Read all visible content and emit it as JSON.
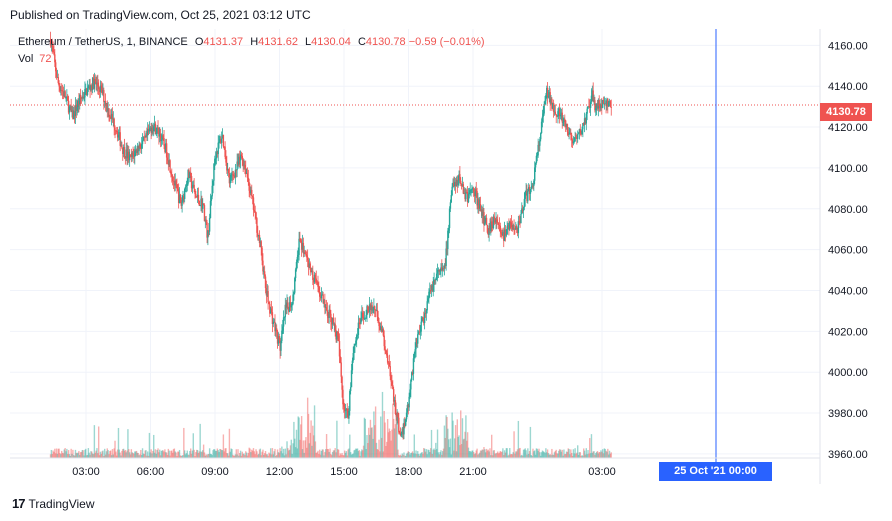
{
  "header": {
    "published": "Published on TradingView.com, Oct 25, 2021 03:12 UTC"
  },
  "legend": {
    "symbol": "Ethereum / TetherUS, 1, BINANCE",
    "o_label": "O",
    "o": "4131.37",
    "h_label": "H",
    "h": "4131.62",
    "l_label": "L",
    "l": "4130.04",
    "c_label": "C",
    "c": "4130.78",
    "change": "−0.59 (−0.01%)",
    "vol_label": "Vol",
    "vol": "72"
  },
  "footer": {
    "brand": "TradingView"
  },
  "chart_data": {
    "type": "candlestick",
    "x_ticks": [
      "03:00",
      "06:00",
      "09:00",
      "12:00",
      "15:00",
      "18:00",
      "21:00",
      "03:00"
    ],
    "y_ticks": [
      "4160.00",
      "4140.00",
      "4120.00",
      "4100.00",
      "4080.00",
      "4060.00",
      "4040.00",
      "4020.00",
      "4000.00",
      "3980.00",
      "3960.00"
    ],
    "ylim": [
      3958,
      4168
    ],
    "last_price": "4130.78",
    "crosshair_time": "25 Oct '21   00:00",
    "colors": {
      "up": "#26a69a",
      "down": "#ef5350",
      "crosshair": "#2962ff",
      "grid": "#f0f3fa"
    },
    "price_path": [
      {
        "t": 0.0,
        "p": 4163
      },
      {
        "t": 0.15,
        "p": 4142
      },
      {
        "t": 0.3,
        "p": 4135
      },
      {
        "t": 0.45,
        "p": 4125
      },
      {
        "t": 0.6,
        "p": 4133
      },
      {
        "t": 0.75,
        "p": 4138
      },
      {
        "t": 0.9,
        "p": 4142
      },
      {
        "t": 1.05,
        "p": 4138
      },
      {
        "t": 1.2,
        "p": 4128
      },
      {
        "t": 1.35,
        "p": 4120
      },
      {
        "t": 1.5,
        "p": 4109
      },
      {
        "t": 1.65,
        "p": 4104
      },
      {
        "t": 1.8,
        "p": 4110
      },
      {
        "t": 1.95,
        "p": 4113
      },
      {
        "t": 2.1,
        "p": 4121
      },
      {
        "t": 2.25,
        "p": 4117
      },
      {
        "t": 2.4,
        "p": 4108
      },
      {
        "t": 2.55,
        "p": 4093
      },
      {
        "t": 2.7,
        "p": 4082
      },
      {
        "t": 2.85,
        "p": 4097
      },
      {
        "t": 3.0,
        "p": 4086
      },
      {
        "t": 3.15,
        "p": 4082
      },
      {
        "t": 3.25,
        "p": 4066
      },
      {
        "t": 3.4,
        "p": 4106
      },
      {
        "t": 3.55,
        "p": 4116
      },
      {
        "t": 3.7,
        "p": 4093
      },
      {
        "t": 3.85,
        "p": 4100
      },
      {
        "t": 3.95,
        "p": 4106
      },
      {
        "t": 4.05,
        "p": 4098
      },
      {
        "t": 4.2,
        "p": 4080
      },
      {
        "t": 4.35,
        "p": 4060
      },
      {
        "t": 4.45,
        "p": 4040
      },
      {
        "t": 4.6,
        "p": 4025
      },
      {
        "t": 4.75,
        "p": 4012
      },
      {
        "t": 4.85,
        "p": 4030
      },
      {
        "t": 5.0,
        "p": 4035
      },
      {
        "t": 5.15,
        "p": 4065
      },
      {
        "t": 5.25,
        "p": 4058
      },
      {
        "t": 5.4,
        "p": 4048
      },
      {
        "t": 5.55,
        "p": 4040
      },
      {
        "t": 5.7,
        "p": 4030
      },
      {
        "t": 5.8,
        "p": 4027
      },
      {
        "t": 5.95,
        "p": 4015
      },
      {
        "t": 6.05,
        "p": 3985
      },
      {
        "t": 6.15,
        "p": 3978
      },
      {
        "t": 6.25,
        "p": 4010
      },
      {
        "t": 6.4,
        "p": 4025
      },
      {
        "t": 6.55,
        "p": 4030
      },
      {
        "t": 6.7,
        "p": 4032
      },
      {
        "t": 6.85,
        "p": 4020
      },
      {
        "t": 6.95,
        "p": 4010
      },
      {
        "t": 7.1,
        "p": 3985
      },
      {
        "t": 7.25,
        "p": 3967
      },
      {
        "t": 7.4,
        "p": 3985
      },
      {
        "t": 7.55,
        "p": 4015
      },
      {
        "t": 7.7,
        "p": 4025
      },
      {
        "t": 7.85,
        "p": 4040
      },
      {
        "t": 8.0,
        "p": 4048
      },
      {
        "t": 8.15,
        "p": 4050
      },
      {
        "t": 8.3,
        "p": 4092
      },
      {
        "t": 8.45,
        "p": 4095
      },
      {
        "t": 8.6,
        "p": 4085
      },
      {
        "t": 8.75,
        "p": 4090
      },
      {
        "t": 8.9,
        "p": 4078
      },
      {
        "t": 9.05,
        "p": 4070
      },
      {
        "t": 9.2,
        "p": 4076
      },
      {
        "t": 9.35,
        "p": 4066
      },
      {
        "t": 9.5,
        "p": 4072
      },
      {
        "t": 9.65,
        "p": 4070
      },
      {
        "t": 9.8,
        "p": 4085
      },
      {
        "t": 9.95,
        "p": 4090
      },
      {
        "t": 10.1,
        "p": 4112
      },
      {
        "t": 10.25,
        "p": 4137
      },
      {
        "t": 10.4,
        "p": 4130
      },
      {
        "t": 10.55,
        "p": 4125
      },
      {
        "t": 10.7,
        "p": 4117
      },
      {
        "t": 10.85,
        "p": 4112
      },
      {
        "t": 11.0,
        "p": 4120
      },
      {
        "t": 11.1,
        "p": 4127
      },
      {
        "t": 11.2,
        "p": 4135
      },
      {
        "t": 11.25,
        "p": 4131
      }
    ]
  }
}
